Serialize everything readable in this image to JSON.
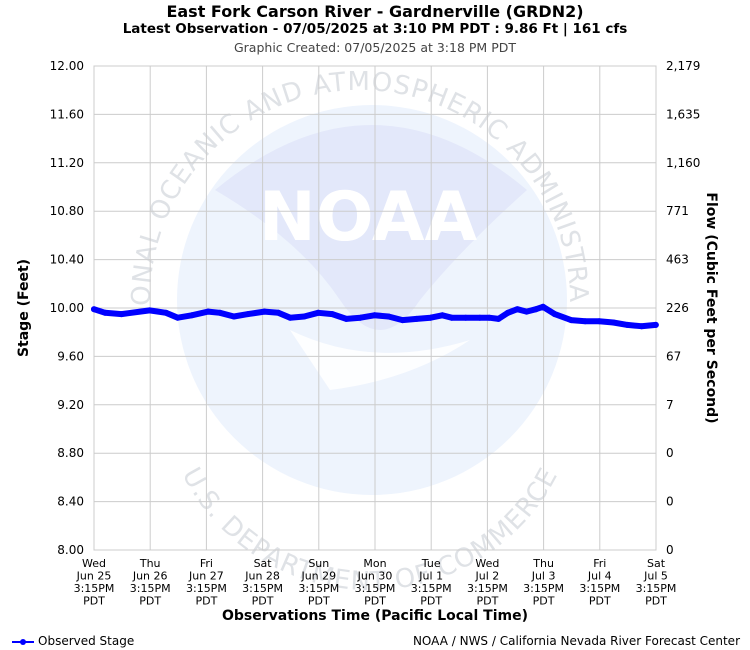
{
  "header": {
    "title": "East Fork Carson River - Gardnerville (GRDN2)",
    "latest": "Latest Observation - 07/05/2025 at 3:10 PM PDT : 9.86 Ft | 161 cfs",
    "created": "Graphic Created: 07/05/2025 at 3:18 PM PDT"
  },
  "watermark": {
    "logo_text": "NOAA",
    "ring_top": "NATIONAL OCEANIC AND ATMOSPHERIC ADMINISTRATION",
    "ring_bottom": "U.S. DEPARTMENT OF COMMERCE"
  },
  "footer": {
    "legend_label": "Observed Stage",
    "credit": "NOAA / NWS / California Nevada River Forecast Center"
  },
  "colors": {
    "series": "#0000ff",
    "grid": "#cccccc",
    "watermark": "#dde3f6"
  },
  "chart_data": {
    "type": "line",
    "xlabel": "Observations Time (Pacific Local Time)",
    "ylabel": "Stage (Feet)",
    "y2label": "Flow (Cubic Feet per Second)",
    "ylim": [
      8.0,
      12.0
    ],
    "yticks": [
      "12.00",
      "11.60",
      "11.20",
      "10.80",
      "10.40",
      "10.00",
      "9.60",
      "9.20",
      "8.80",
      "8.40",
      "8.00"
    ],
    "y2ticks": [
      "2,179",
      "1,635",
      "1,160",
      "771",
      "463",
      "226",
      "67",
      "7",
      "0",
      "0",
      "0"
    ],
    "x_ticks": [
      [
        "Wed",
        "Jun 25",
        "3:15PM",
        "PDT"
      ],
      [
        "Thu",
        "Jun 26",
        "3:15PM",
        "PDT"
      ],
      [
        "Fri",
        "Jun 27",
        "3:15PM",
        "PDT"
      ],
      [
        "Sat",
        "Jun 28",
        "3:15PM",
        "PDT"
      ],
      [
        "Sun",
        "Jun 29",
        "3:15PM",
        "PDT"
      ],
      [
        "Mon",
        "Jun 30",
        "3:15PM",
        "PDT"
      ],
      [
        "Tue",
        "Jul 1",
        "3:15PM",
        "PDT"
      ],
      [
        "Wed",
        "Jul 2",
        "3:15PM",
        "PDT"
      ],
      [
        "Thu",
        "Jul 3",
        "3:15PM",
        "PDT"
      ],
      [
        "Fri",
        "Jul 4",
        "3:15PM",
        "PDT"
      ],
      [
        "Sat",
        "Jul 5",
        "3:15PM",
        "PDT"
      ]
    ],
    "grid": true,
    "legend_position": "bottom-left",
    "series": [
      {
        "name": "Observed Stage",
        "x": [
          "06/25 15:15",
          "06/25 20:00",
          "06/26 03:00",
          "06/26 15:00",
          "06/26 22:00",
          "06/27 03:00",
          "06/27 09:00",
          "06/27 16:00",
          "06/27 21:00",
          "06/28 03:00",
          "06/28 09:00",
          "06/28 16:00",
          "06/28 22:00",
          "06/29 03:00",
          "06/29 09:00",
          "06/29 15:00",
          "06/29 21:00",
          "06/30 03:00",
          "06/30 09:00",
          "06/30 15:00",
          "06/30 21:00",
          "07/01 03:00",
          "07/01 09:00",
          "07/01 15:00",
          "07/01 20:00",
          "07/02 00:00",
          "07/02 06:00",
          "07/02 12:00",
          "07/02 16:00",
          "07/02 20:00",
          "07/03 00:00",
          "07/03 04:00",
          "07/03 08:00",
          "07/03 12:00",
          "07/03 15:00",
          "07/03 20:00",
          "07/04 03:00",
          "07/04 09:00",
          "07/04 15:00",
          "07/04 21:00",
          "07/05 03:00",
          "07/05 09:00",
          "07/05 15:10"
        ],
        "values": [
          9.99,
          9.96,
          9.95,
          9.98,
          9.96,
          9.92,
          9.94,
          9.97,
          9.96,
          9.93,
          9.95,
          9.97,
          9.96,
          9.92,
          9.93,
          9.96,
          9.95,
          9.91,
          9.92,
          9.94,
          9.93,
          9.9,
          9.91,
          9.92,
          9.94,
          9.92,
          9.92,
          9.92,
          9.92,
          9.91,
          9.96,
          9.99,
          9.97,
          9.99,
          10.01,
          9.95,
          9.9,
          9.89,
          9.89,
          9.88,
          9.86,
          9.85,
          9.86
        ]
      }
    ]
  }
}
